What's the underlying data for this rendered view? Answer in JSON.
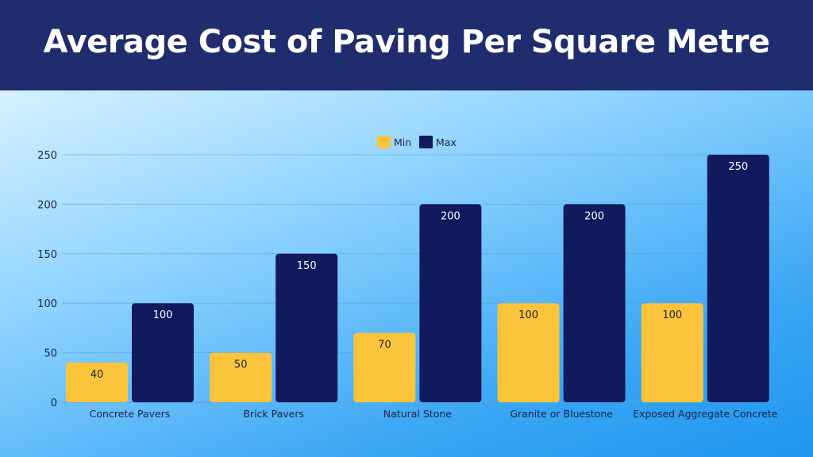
{
  "header": {
    "title": "Average Cost of Paving Per Square Metre"
  },
  "chart_data": {
    "type": "bar",
    "title": "Average Cost of Paving Per Square Metre",
    "categories": [
      "Concrete Pavers",
      "Brick Pavers",
      "Natural Stone",
      "Granite or Bluestone",
      "Exposed Aggregate Concrete"
    ],
    "series": [
      {
        "name": "Min",
        "values": [
          40,
          50,
          70,
          100,
          100
        ],
        "color": "#fcc43a"
      },
      {
        "name": "Max",
        "values": [
          100,
          150,
          200,
          200,
          250
        ],
        "color": "#111a5c"
      }
    ],
    "yticks": [
      0,
      50,
      100,
      150,
      200,
      250
    ],
    "ylim": [
      0,
      250
    ],
    "grid": true,
    "legend": "top-center",
    "xlabel": "",
    "ylabel": ""
  }
}
